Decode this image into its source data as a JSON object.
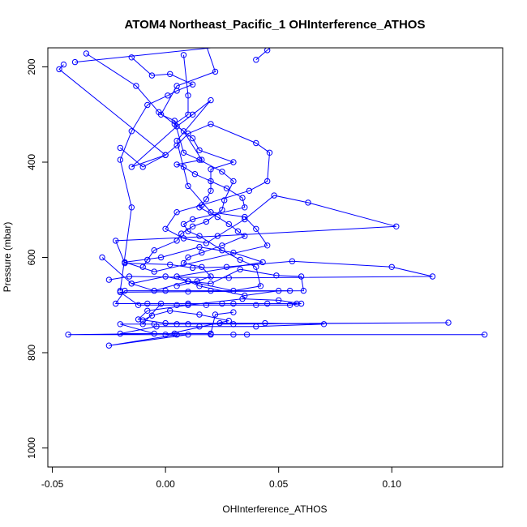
{
  "chart_data": {
    "type": "scatter",
    "title": "ATOM4 Northeast_Pacific_1 OHInterference_ATHOS",
    "xlabel": "OHInterference_ATHOS",
    "ylabel": "Pressure (mbar)",
    "xlim": [
      -0.052,
      0.149
    ],
    "ylim": [
      1040,
      160
    ],
    "y_reversed": true,
    "grid": false,
    "x_ticks": [
      -0.05,
      0.0,
      0.05,
      0.1
    ],
    "x_tick_labels": [
      "-0.05",
      "0.00",
      "0.05",
      "0.10"
    ],
    "y_ticks": [
      200,
      400,
      600,
      800,
      1000
    ],
    "y_tick_labels": [
      "200",
      "400",
      "600",
      "800",
      "1000"
    ],
    "color": "#0000ff",
    "marker": "open-circle",
    "connected": true,
    "series": [
      {
        "points": [
          [
            -0.045,
            195
          ],
          [
            -0.047,
            205
          ],
          [
            0.0,
            385
          ],
          [
            -0.015,
            410
          ],
          [
            0.005,
            325
          ],
          [
            0.012,
            300
          ],
          [
            0.02,
            270
          ],
          [
            0.005,
            355
          ],
          [
            0.01,
            450
          ],
          [
            0.02,
            505
          ],
          [
            0.035,
            515
          ],
          [
            0.04,
            540
          ],
          [
            0.045,
            575
          ],
          [
            -0.005,
            630
          ],
          [
            -0.018,
            610
          ],
          [
            -0.002,
            600
          ],
          [
            0.015,
            578
          ],
          [
            0.03,
            590
          ],
          [
            0.043,
            610
          ],
          [
            0.005,
            640
          ],
          [
            0.015,
            660
          ],
          [
            0.035,
            680
          ],
          [
            0.05,
            670
          ],
          [
            0.055,
            670
          ],
          [
            0.02,
            670
          ],
          [
            0.0,
            670
          ],
          [
            -0.018,
            670
          ],
          [
            -0.022,
            697
          ],
          [
            -0.008,
            697
          ],
          [
            0.01,
            697
          ],
          [
            0.025,
            697
          ],
          [
            0.045,
            697
          ],
          [
            0.058,
            697
          ],
          [
            0.03,
            697
          ],
          [
            -0.002,
            697
          ],
          [
            -0.01,
            740
          ],
          [
            -0.005,
            740
          ],
          [
            0.01,
            740
          ],
          [
            0.03,
            740
          ],
          [
            0.125,
            737
          ],
          [
            0.005,
            740
          ],
          [
            -0.02,
            740
          ],
          [
            -0.005,
            760
          ],
          [
            -0.043,
            762
          ],
          [
            0.141,
            762
          ],
          [
            0.02,
            762
          ],
          [
            0.005,
            762
          ],
          [
            -0.025,
            785
          ],
          [
            0.01,
            762
          ],
          [
            0.03,
            762
          ],
          [
            0.036,
            762
          ],
          [
            0.0,
            762
          ],
          [
            0.028,
            733
          ],
          [
            0.015,
            720
          ],
          [
            0.002,
            712
          ],
          [
            -0.006,
            722
          ],
          [
            -0.01,
            732
          ]
        ]
      },
      {
        "points": [
          [
            -0.028,
            600
          ],
          [
            -0.015,
            655
          ],
          [
            -0.005,
            670
          ],
          [
            0.01,
            650
          ],
          [
            0.02,
            655
          ],
          [
            0.033,
            625
          ],
          [
            0.049,
            638
          ],
          [
            0.06,
            640
          ],
          [
            0.061,
            670
          ],
          [
            0.01,
            672
          ],
          [
            -0.02,
            673
          ],
          [
            -0.012,
            700
          ],
          [
            0.005,
            700
          ],
          [
            0.018,
            700
          ],
          [
            0.04,
            700
          ],
          [
            0.055,
            700
          ],
          [
            0.06,
            697
          ],
          [
            0.05,
            690
          ],
          [
            0.034,
            687
          ],
          [
            0.01,
            700
          ],
          [
            -0.008,
            712
          ],
          [
            -0.012,
            730
          ],
          [
            0.0,
            738
          ],
          [
            0.024,
            738
          ],
          [
            0.044,
            738
          ],
          [
            0.07,
            740
          ],
          [
            0.04,
            745
          ],
          [
            0.015,
            745
          ],
          [
            -0.004,
            745
          ],
          [
            -0.02,
            760
          ],
          [
            0.004,
            760
          ],
          [
            0.02,
            760
          ],
          [
            0.022,
            720
          ],
          [
            0.03,
            715
          ]
        ]
      },
      {
        "points": [
          [
            -0.02,
            370
          ],
          [
            -0.01,
            410
          ],
          [
            0.0,
            385
          ],
          [
            0.005,
            365
          ],
          [
            0.01,
            340
          ],
          [
            0.02,
            320
          ],
          [
            0.04,
            360
          ],
          [
            0.046,
            380
          ],
          [
            0.045,
            440
          ],
          [
            0.037,
            460
          ],
          [
            0.016,
            490
          ],
          [
            0.005,
            505
          ],
          [
            0.0,
            540
          ],
          [
            0.008,
            560
          ],
          [
            0.018,
            570
          ],
          [
            0.035,
            520
          ],
          [
            0.048,
            470
          ],
          [
            0.063,
            485
          ],
          [
            0.102,
            535
          ],
          [
            0.023,
            555
          ],
          [
            -0.022,
            565
          ],
          [
            -0.018,
            612
          ],
          [
            0.002,
            615
          ],
          [
            0.012,
            622
          ],
          [
            0.027,
            620
          ],
          [
            0.056,
            608
          ],
          [
            0.1,
            620
          ],
          [
            0.118,
            640
          ],
          [
            0.028,
            643
          ],
          [
            -0.016,
            640
          ],
          [
            -0.025,
            647
          ]
        ]
      },
      {
        "points": [
          [
            -0.035,
            172
          ],
          [
            -0.013,
            240
          ],
          [
            -0.003,
            295
          ],
          [
            0.008,
            335
          ],
          [
            0.016,
            395
          ],
          [
            0.005,
            405
          ],
          [
            0.008,
            410
          ],
          [
            0.013,
            425
          ],
          [
            0.02,
            440
          ],
          [
            0.027,
            455
          ],
          [
            0.034,
            475
          ],
          [
            0.035,
            495
          ],
          [
            0.012,
            520
          ],
          [
            0.008,
            530
          ],
          [
            0.01,
            545
          ],
          [
            0.015,
            555
          ],
          [
            0.025,
            585
          ],
          [
            0.033,
            605
          ],
          [
            0.04,
            620
          ],
          [
            0.042,
            660
          ],
          [
            0.03,
            670
          ],
          [
            0.01,
            650
          ],
          [
            0.0,
            640
          ],
          [
            -0.015,
            655
          ]
        ]
      },
      {
        "points": [
          [
            0.018,
            155
          ],
          [
            0.022,
            210
          ],
          [
            0.005,
            240
          ],
          [
            -0.002,
            300
          ],
          [
            0.004,
            313
          ],
          [
            0.008,
            380
          ],
          [
            0.015,
            395
          ],
          [
            0.025,
            420
          ],
          [
            0.03,
            440
          ],
          [
            0.026,
            480
          ],
          [
            0.025,
            500
          ],
          [
            0.018,
            525
          ],
          [
            0.012,
            535
          ],
          [
            0.007,
            550
          ],
          [
            0.005,
            565
          ],
          [
            -0.005,
            585
          ],
          [
            -0.008,
            605
          ],
          [
            -0.01,
            620
          ]
        ]
      },
      {
        "points": [
          [
            0.008,
            175
          ],
          [
            0.01,
            260
          ],
          [
            0.01,
            300
          ],
          [
            0.004,
            320
          ],
          [
            0.012,
            350
          ],
          [
            0.015,
            375
          ],
          [
            0.03,
            400
          ],
          [
            0.02,
            415
          ],
          [
            0.02,
            460
          ],
          [
            0.018,
            478
          ],
          [
            0.015,
            495
          ],
          [
            0.023,
            515
          ],
          [
            0.028,
            530
          ],
          [
            0.032,
            545
          ],
          [
            0.035,
            555
          ],
          [
            0.025,
            575
          ],
          [
            0.016,
            590
          ],
          [
            0.01,
            600
          ],
          [
            0.008,
            612
          ],
          [
            0.016,
            620
          ],
          [
            0.02,
            640
          ],
          [
            0.014,
            650
          ],
          [
            0.005,
            660
          ]
        ]
      },
      {
        "points": [
          [
            -0.015,
            180
          ],
          [
            -0.006,
            218
          ],
          [
            0.002,
            215
          ],
          [
            0.012,
            237
          ],
          [
            0.005,
            250
          ],
          [
            0.001,
            260
          ],
          [
            -0.008,
            280
          ],
          [
            -0.015,
            335
          ],
          [
            -0.02,
            395
          ],
          [
            -0.015,
            495
          ],
          [
            -0.02,
            670
          ]
        ]
      },
      {
        "points": [
          [
            0.04,
            185
          ],
          [
            0.045,
            165
          ],
          [
            0.05,
            145
          ],
          [
            -0.04,
            190
          ]
        ]
      }
    ]
  }
}
